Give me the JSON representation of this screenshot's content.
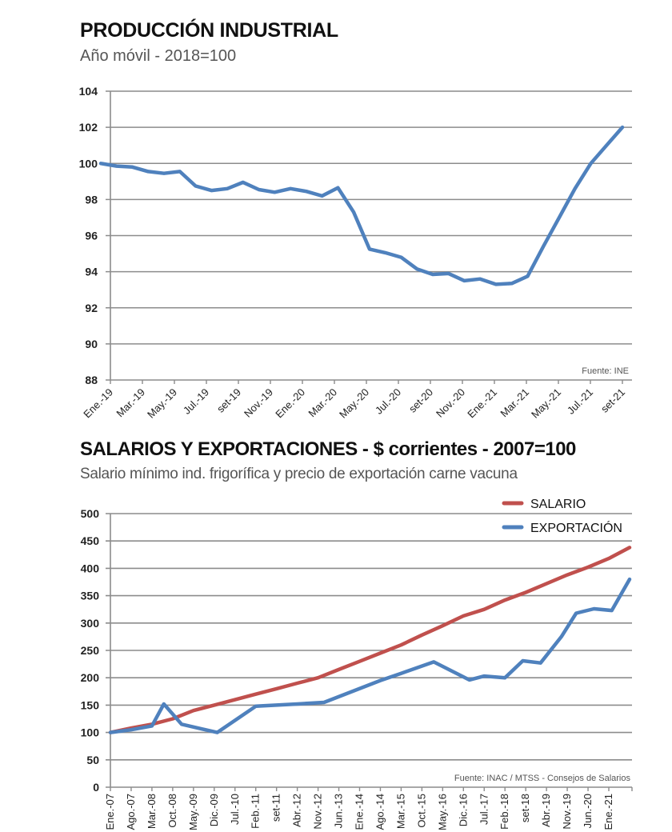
{
  "chart_data": [
    {
      "type": "line",
      "title": "PRODUCCIÓN INDUSTRIAL",
      "subtitle": "Año móvil - 2018=100",
      "xlabel": "",
      "ylabel": "",
      "ylim": [
        88,
        104
      ],
      "yticks": [
        88,
        90,
        92,
        94,
        96,
        98,
        100,
        102,
        104
      ],
      "grid": true,
      "x_tick_labels": [
        "Ene.-19",
        "Mar.-19",
        "May.-19",
        "Jul.-19",
        "set-19",
        "Nov.-19",
        "Ene.-20",
        "Mar.-20",
        "May.-20",
        "Jul.-20",
        "set-20",
        "Nov.-20",
        "Ene.-21",
        "Mar.-21",
        "May.-21",
        "Jul.-21",
        "set-21"
      ],
      "source": "Fuente: INE",
      "series": [
        {
          "name": "Producción industrial",
          "color": "#4f81bd",
          "values": [
            100,
            99.85,
            99.8,
            99.55,
            99.45,
            99.55,
            98.75,
            98.5,
            98.6,
            98.95,
            98.55,
            98.4,
            98.6,
            98.45,
            98.2,
            98.65,
            97.3,
            95.25,
            95.05,
            94.8,
            94.15,
            93.85,
            93.9,
            93.5,
            93.6,
            93.3,
            93.35,
            93.75,
            95.4,
            97.0,
            98.6,
            100.0,
            101.0,
            102.0
          ]
        }
      ]
    },
    {
      "type": "line",
      "title": "SALARIOS Y EXPORTACIONES - $ corrientes - 2007=100",
      "subtitle": "Salario mínimo ind. frigorífica y precio de exportación carne vacuna",
      "xlabel": "",
      "ylabel": "",
      "ylim": [
        0,
        500
      ],
      "yticks": [
        0,
        50,
        100,
        150,
        200,
        250,
        300,
        350,
        400,
        450,
        500
      ],
      "grid": true,
      "legend_position": "top-right",
      "x_tick_labels": [
        "Ene.-07",
        "Ago.-07",
        "Mar.-08",
        "Oct.-08",
        "May.-09",
        "Dic.-09",
        "Jul.-10",
        "Feb.-11",
        "set-11",
        "Abr.-12",
        "Nov.-12",
        "Jun.-13",
        "Ene.-14",
        "Ago.-14",
        "Mar.-15",
        "Oct.-15",
        "May.-16",
        "Dic.-16",
        "Jul.-17",
        "Feb.-18",
        "set-18",
        "Abr.-19",
        "Nov.-19",
        "Jun.-20",
        "Ene.-21"
      ],
      "x_unit": "months since Ene.-07",
      "x_max": 176,
      "source": "Fuente: INAC / MTSS - Consejos de Salarios",
      "series": [
        {
          "name": "SALARIO",
          "color": "#c0504d",
          "x": [
            0,
            7,
            14,
            21,
            28,
            35,
            42,
            49,
            56,
            63,
            70,
            77,
            84,
            91,
            98,
            105,
            112,
            119,
            126,
            133,
            140,
            147,
            154,
            161,
            168,
            175
          ],
          "values": [
            100,
            108,
            115,
            125,
            140,
            150,
            160,
            170,
            180,
            190,
            200,
            215,
            230,
            245,
            260,
            278,
            295,
            313,
            325,
            342,
            356,
            372,
            388,
            402,
            418,
            438
          ]
        },
        {
          "name": "EXPORTACIÓN",
          "color": "#4f81bd",
          "x": [
            0,
            7,
            14,
            18,
            24,
            36,
            49,
            56,
            63,
            72,
            91,
            98,
            109,
            121,
            126,
            133,
            139,
            145,
            152,
            157,
            163,
            169,
            175
          ],
          "values": [
            100,
            105,
            112,
            152,
            115,
            100,
            148,
            150,
            152,
            155,
            195,
            208,
            229,
            196,
            203,
            200,
            231,
            227,
            275,
            318,
            326,
            323,
            380
          ]
        }
      ]
    }
  ]
}
